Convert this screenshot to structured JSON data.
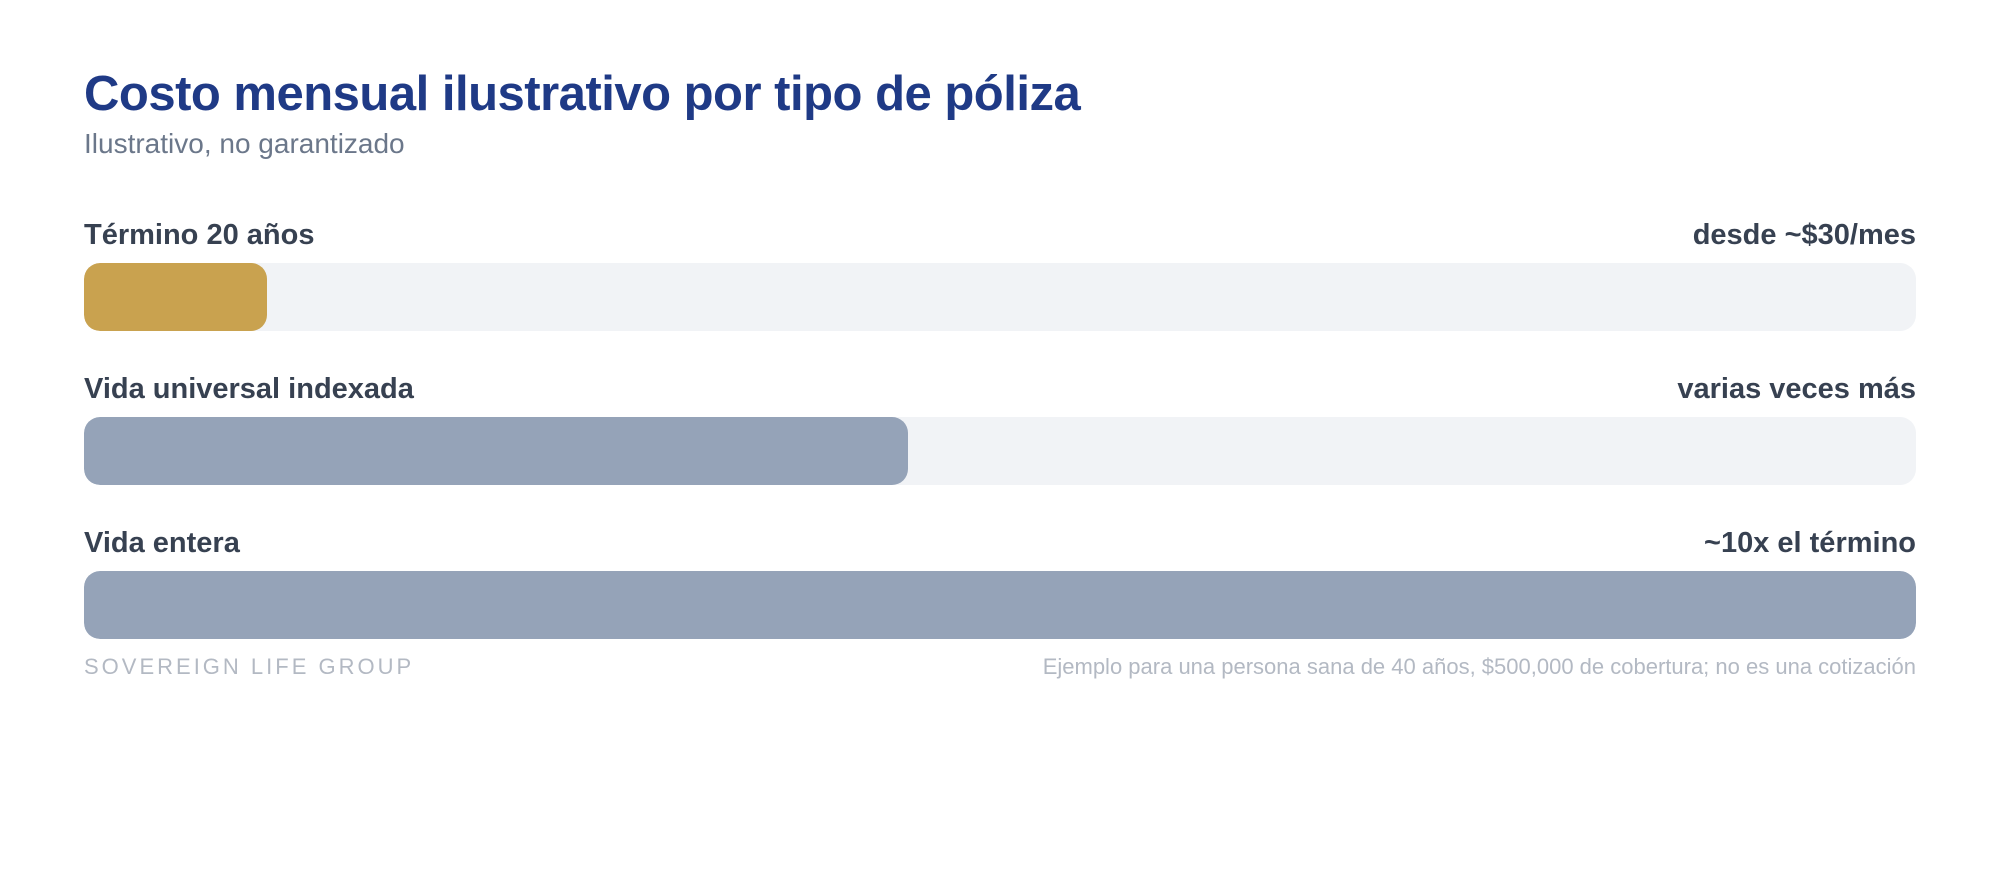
{
  "chart_data": {
    "type": "bar",
    "title": "Costo mensual ilustrativo por tipo de póliza",
    "subtitle": "Ilustrativo, no garantizado",
    "categories": [
      "Término 20 años",
      "Vida universal indexada",
      "Vida entera"
    ],
    "notes": [
      "desde ~$30/mes",
      "varias veces más",
      "~10x el término"
    ],
    "values": [
      1,
      4.5,
      10
    ],
    "xlim": [
      0,
      10
    ],
    "colors": [
      "#c9a24f",
      "#95a3b8",
      "#95a3b8"
    ],
    "track_color": "#f1f3f6"
  },
  "footer": {
    "brand": "SOVEREIGN LIFE GROUP",
    "note": "Ejemplo para una persona sana de 40 años, $500,000 de cobertura; no es una cotización"
  }
}
